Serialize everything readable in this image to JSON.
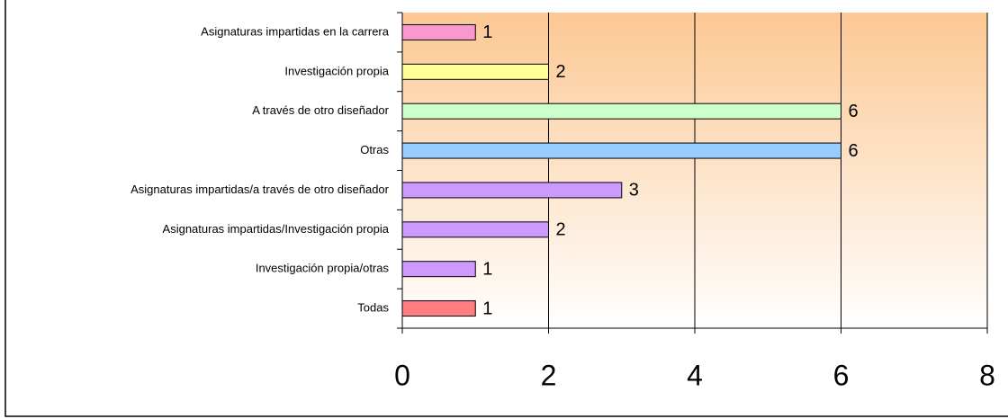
{
  "chart_data": {
    "type": "bar",
    "orientation": "horizontal",
    "categories": [
      "Asignaturas impartidas en la carrera",
      "Investigación propia",
      "A través de otro diseñador",
      "Otras",
      "Asignaturas impartidas/a través de otro diseñador",
      "Asignaturas impartidas/Investigación propia",
      "Investigación propia/otras",
      "Todas"
    ],
    "values": [
      1,
      2,
      6,
      6,
      3,
      2,
      1,
      1
    ],
    "colors": [
      "#f799cc",
      "#ffff99",
      "#ccffcc",
      "#99ccff",
      "#cc99ff",
      "#cc99ff",
      "#cc99ff",
      "#ff7c80"
    ],
    "xlim": [
      0,
      8
    ],
    "xticks": [
      0,
      2,
      4,
      6,
      8
    ],
    "grid": true
  }
}
